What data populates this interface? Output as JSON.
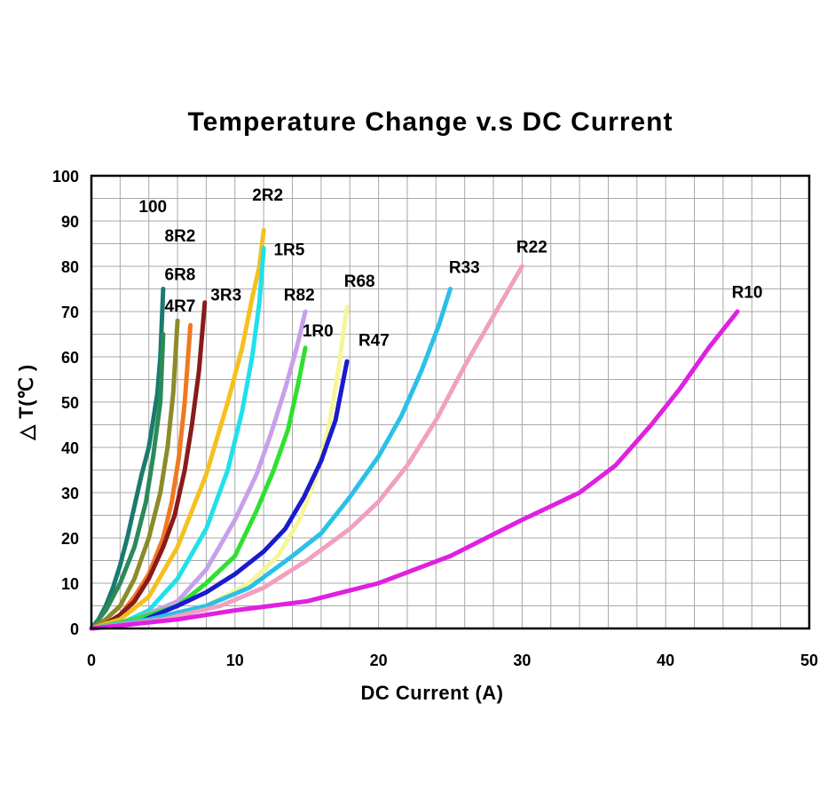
{
  "chart_data": {
    "type": "line",
    "title": "Temperature Change v.s DC Current",
    "xlabel": "DC Current (A)",
    "ylabel": "△ T(℃ )",
    "xlim": [
      0,
      50
    ],
    "ylim": [
      0,
      100
    ],
    "xticks": [
      0,
      10,
      20,
      30,
      40,
      50
    ],
    "yticks": [
      0,
      10,
      20,
      30,
      40,
      50,
      60,
      70,
      80,
      90,
      100
    ],
    "grid": true,
    "series": [
      {
        "name": "100",
        "color": "#1a7a6e",
        "x": [
          0,
          0.5,
          1,
          1.5,
          2,
          2.5,
          3,
          3.5,
          4,
          4.3,
          4.6,
          4.8,
          5.0
        ],
        "y": [
          0,
          2,
          5,
          9,
          14,
          20,
          27,
          34,
          40,
          46,
          52,
          60,
          75
        ]
      },
      {
        "name": "8R2",
        "color": "#2a8a5a",
        "x": [
          0,
          1,
          2,
          3,
          3.8,
          4.3,
          4.8,
          5.0
        ],
        "y": [
          0,
          4,
          10,
          18,
          28,
          38,
          50,
          65
        ]
      },
      {
        "name": "6R8",
        "color": "#8b8b2a",
        "x": [
          0,
          1,
          2,
          3,
          4,
          4.8,
          5.3,
          5.7,
          6.0
        ],
        "y": [
          0,
          2,
          5,
          11,
          20,
          30,
          40,
          52,
          68
        ]
      },
      {
        "name": "4R7",
        "color": "#f07820",
        "x": [
          0,
          1,
          2,
          3,
          4,
          5,
          5.6,
          6.1,
          6.5,
          6.9
        ],
        "y": [
          0,
          1,
          3,
          7,
          12,
          20,
          28,
          38,
          50,
          67
        ]
      },
      {
        "name": "3R3",
        "color": "#8b1a1a",
        "x": [
          0,
          1,
          2,
          3,
          4,
          5,
          5.8,
          6.5,
          7.0,
          7.5,
          7.9
        ],
        "y": [
          0,
          1,
          3,
          6,
          11,
          18,
          25,
          35,
          45,
          57,
          72
        ]
      },
      {
        "name": "2R2",
        "color": "#f5c020",
        "x": [
          0,
          2,
          4,
          6,
          8,
          9.5,
          10.5,
          11.2,
          11.7,
          12.0
        ],
        "y": [
          0,
          2,
          7,
          18,
          34,
          50,
          62,
          73,
          80,
          88
        ]
      },
      {
        "name": "1R5",
        "color": "#20e0ea",
        "x": [
          0,
          2,
          4,
          6,
          8,
          9.5,
          10.5,
          11.2,
          11.7,
          12.0
        ],
        "y": [
          0,
          1,
          4,
          11,
          22,
          35,
          48,
          60,
          72,
          84
        ]
      },
      {
        "name": "R82",
        "color": "#c8a0ea",
        "x": [
          0,
          3,
          6,
          8,
          10,
          11.5,
          12.5,
          13.5,
          14.3,
          14.9
        ],
        "y": [
          0,
          2,
          6,
          13,
          24,
          34,
          43,
          53,
          62,
          70
        ]
      },
      {
        "name": "1R0",
        "color": "#30e030",
        "x": [
          0,
          3,
          6,
          8,
          10,
          11.5,
          12.7,
          13.7,
          14.4,
          14.9
        ],
        "y": [
          0,
          2,
          5,
          10,
          16,
          26,
          35,
          44,
          54,
          62
        ]
      },
      {
        "name": "R68",
        "color": "#f5f59a",
        "x": [
          0,
          4,
          8,
          11,
          13,
          14.5,
          15.6,
          16.5,
          17.2,
          17.8
        ],
        "y": [
          0,
          2,
          5,
          10,
          16,
          24,
          33,
          44,
          57,
          71
        ]
      },
      {
        "name": "R47",
        "color": "#1a1acf",
        "x": [
          0,
          3,
          6,
          8,
          10,
          12,
          13.5,
          14.8,
          16,
          17.0,
          17.8
        ],
        "y": [
          0,
          1,
          5,
          8,
          12,
          17,
          22,
          29,
          37,
          46,
          59
        ]
      },
      {
        "name": "R33",
        "color": "#2ac0e8",
        "x": [
          0,
          4,
          8,
          11,
          14,
          16,
          18,
          20,
          21.6,
          23,
          24.2,
          25.0
        ],
        "y": [
          0,
          2,
          5,
          9,
          16,
          21,
          29,
          38,
          47,
          57,
          67,
          75
        ]
      },
      {
        "name": "R22",
        "color": "#f0a0c0",
        "x": [
          0,
          5,
          9,
          12,
          15,
          18,
          20,
          22,
          24,
          26,
          28,
          30
        ],
        "y": [
          0,
          2,
          5,
          9,
          15,
          22,
          28,
          36,
          46,
          58,
          69,
          80
        ]
      },
      {
        "name": "R10",
        "color": "#e020e0",
        "x": [
          0,
          3,
          6,
          10,
          15,
          20,
          25,
          30,
          34,
          36.5,
          39,
          41,
          43,
          45
        ],
        "y": [
          0,
          1,
          2,
          4,
          6,
          10,
          16,
          24,
          30,
          36,
          45,
          53,
          62,
          70
        ]
      }
    ],
    "labels": [
      {
        "text": "100",
        "x": 3.3,
        "y": 92
      },
      {
        "text": "8R2",
        "x": 5.1,
        "y": 85.5
      },
      {
        "text": "6R8",
        "x": 5.1,
        "y": 77
      },
      {
        "text": "4R7",
        "x": 5.1,
        "y": 70
      },
      {
        "text": "3R3",
        "x": 8.3,
        "y": 72.5
      },
      {
        "text": "2R2",
        "x": 11.2,
        "y": 94.5
      },
      {
        "text": "1R5",
        "x": 12.7,
        "y": 82.5
      },
      {
        "text": "R82",
        "x": 13.4,
        "y": 72.5
      },
      {
        "text": "1R0",
        "x": 14.7,
        "y": 64.5
      },
      {
        "text": "R68",
        "x": 17.6,
        "y": 75.5
      },
      {
        "text": "R47",
        "x": 18.6,
        "y": 62.5
      },
      {
        "text": "R33",
        "x": 24.9,
        "y": 78.5
      },
      {
        "text": "R22",
        "x": 29.6,
        "y": 83
      },
      {
        "text": "R10",
        "x": 44.6,
        "y": 73
      }
    ]
  }
}
